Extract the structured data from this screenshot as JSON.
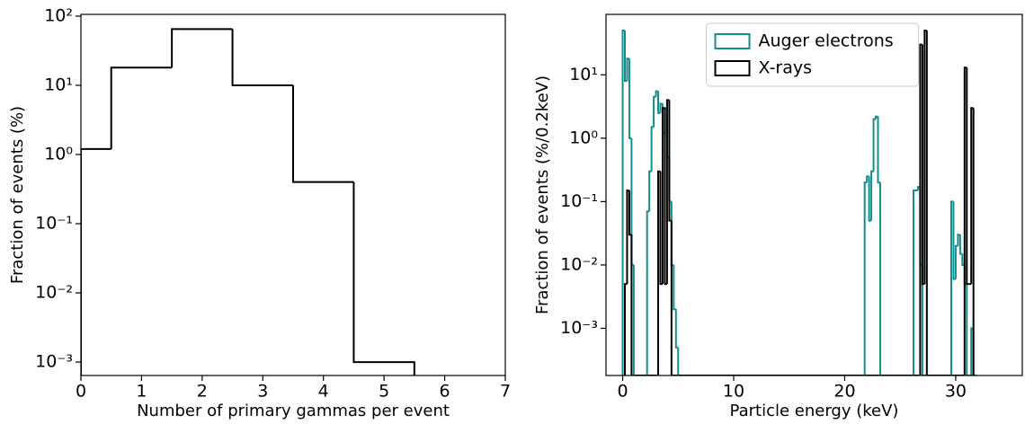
{
  "chart_data": [
    {
      "type": "histogram",
      "xlabel": "Number of primary gammas per event",
      "ylabel": "Fraction of events (%)",
      "bins": [
        0,
        0.5,
        1.5,
        2.5,
        3.5,
        4.5,
        5.5
      ],
      "values": [
        1.2,
        18,
        65,
        10,
        0.4,
        0.001
      ],
      "color": "#000000",
      "xlim": [
        0,
        7
      ],
      "xticks": [
        0,
        1,
        2,
        3,
        4,
        5,
        6,
        7
      ],
      "log_y": true,
      "ylim": [
        0.00064,
        106
      ],
      "yticks": [
        {
          "value": 0.001,
          "label": "10⁻³"
        },
        {
          "value": 0.01,
          "label": "10⁻²"
        },
        {
          "value": 0.1,
          "label": "10⁻¹"
        },
        {
          "value": 1,
          "label": "10⁰"
        },
        {
          "value": 10,
          "label": "10¹"
        },
        {
          "value": 100,
          "label": "10²"
        }
      ]
    },
    {
      "type": "histogram",
      "xlabel": "Particle energy (keV)",
      "ylabel": "Fraction of events (%/0.2keV)",
      "xlim": [
        -1.5,
        36
      ],
      "xticks": [
        0,
        10,
        20,
        30
      ],
      "log_y": true,
      "ylim": [
        0.00018,
        90
      ],
      "yticks": [
        {
          "value": 0.001,
          "label": "10⁻³"
        },
        {
          "value": 0.01,
          "label": "10⁻²"
        },
        {
          "value": 0.1,
          "label": "10⁻¹"
        },
        {
          "value": 1,
          "label": "10⁰"
        },
        {
          "value": 10,
          "label": "10¹"
        }
      ],
      "legend": "upper center",
      "series": [
        {
          "name": "Auger electrons",
          "color": "#138d8d",
          "bins": [
            0,
            0.2,
            0.4,
            0.6,
            0.8,
            1.0,
            2.2,
            2.4,
            2.6,
            2.8,
            3.0,
            3.2,
            3.4,
            3.6,
            3.8,
            4.0,
            4.2,
            4.4,
            4.6,
            4.8,
            5.0,
            21.8,
            22.0,
            22.2,
            22.4,
            22.6,
            22.8,
            23.0,
            23.2,
            26.2,
            26.4,
            26.6,
            26.8,
            27.0,
            29.6,
            29.8,
            30.0,
            30.2,
            30.4,
            30.6,
            30.8,
            31.0,
            31.4,
            31.6,
            31.8
          ],
          "values": [
            50,
            8,
            18,
            1.0,
            0.01,
            0,
            0.07,
            0.3,
            1.5,
            4.5,
            5.5,
            2.5,
            3.5,
            1.2,
            3,
            0.5,
            0.1,
            0.01,
            0.002,
            0.0005,
            0,
            0.2,
            0.25,
            0.05,
            0.3,
            2,
            2.2,
            0.2,
            0,
            0.15,
            0.15,
            0.17,
            0.01,
            0,
            0.1,
            0.006,
            0.02,
            0.03,
            0.015,
            0.01,
            0.005,
            0,
            0.001,
            0
          ]
        },
        {
          "name": "X-rays",
          "color": "#000000",
          "bins": [
            0.2,
            0.4,
            0.6,
            0.8,
            1.0,
            3.2,
            3.4,
            3.6,
            3.8,
            4.0,
            4.2,
            4.4,
            26.8,
            27.0,
            27.2,
            27.4,
            27.6,
            30.8,
            31.0,
            31.2,
            31.4,
            31.6,
            31.8
          ],
          "values": [
            0.005,
            0.15,
            0.03,
            0,
            0,
            0.3,
            0.005,
            3,
            0.005,
            4,
            0.05,
            0,
            30,
            0.005,
            50,
            0,
            0,
            13,
            0.005,
            0.005,
            3,
            0
          ]
        }
      ]
    }
  ]
}
